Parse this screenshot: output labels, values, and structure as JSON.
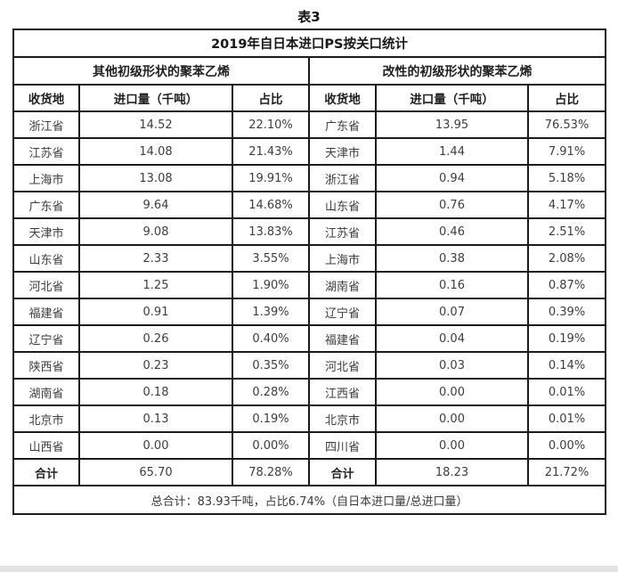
{
  "page_title": "表3",
  "chart_data": {
    "type": "table",
    "title": "2019年自日本进口PS按关口统计",
    "column_headers": [
      "收货地",
      "进口量（千吨）",
      "占比",
      "收货地",
      "进口量（千吨）",
      "占比"
    ],
    "groups": [
      {
        "label": "其他初级形状的聚苯乙烯",
        "rows": [
          [
            "浙江省",
            "14.52",
            "22.10%"
          ],
          [
            "江苏省",
            "14.08",
            "21.43%"
          ],
          [
            "上海市",
            "13.08",
            "19.91%"
          ],
          [
            "广东省",
            "9.64",
            "14.68%"
          ],
          [
            "天津市",
            "9.08",
            "13.83%"
          ],
          [
            "山东省",
            "2.33",
            "3.55%"
          ],
          [
            "河北省",
            "1.25",
            "1.90%"
          ],
          [
            "福建省",
            "0.91",
            "1.39%"
          ],
          [
            "辽宁省",
            "0.26",
            "0.40%"
          ],
          [
            "陕西省",
            "0.23",
            "0.35%"
          ],
          [
            "湖南省",
            "0.18",
            "0.28%"
          ],
          [
            "北京市",
            "0.13",
            "0.19%"
          ],
          [
            "山西省",
            "0.00",
            "0.00%"
          ]
        ],
        "total": [
          "合计",
          "65.70",
          "78.28%"
        ]
      },
      {
        "label": "改性的初级形状的聚苯乙烯",
        "rows": [
          [
            "广东省",
            "13.95",
            "76.53%"
          ],
          [
            "天津市",
            "1.44",
            "7.91%"
          ],
          [
            "浙江省",
            "0.94",
            "5.18%"
          ],
          [
            "山东省",
            "0.76",
            "4.17%"
          ],
          [
            "江苏省",
            "0.46",
            "2.51%"
          ],
          [
            "上海市",
            "0.38",
            "2.08%"
          ],
          [
            "湖南省",
            "0.16",
            "0.87%"
          ],
          [
            "辽宁省",
            "0.07",
            "0.39%"
          ],
          [
            "福建省",
            "0.04",
            "0.19%"
          ],
          [
            "河北省",
            "0.03",
            "0.14%"
          ],
          [
            "江西省",
            "0.00",
            "0.01%"
          ],
          [
            "北京市",
            "0.00",
            "0.01%"
          ],
          [
            "四川省",
            "0.00",
            "0.00%"
          ]
        ],
        "total": [
          "合计",
          "18.23",
          "21.72%"
        ]
      }
    ],
    "footer": "总合计：83.93千吨，占比6.74%（自日本进口量/总进口量）"
  }
}
